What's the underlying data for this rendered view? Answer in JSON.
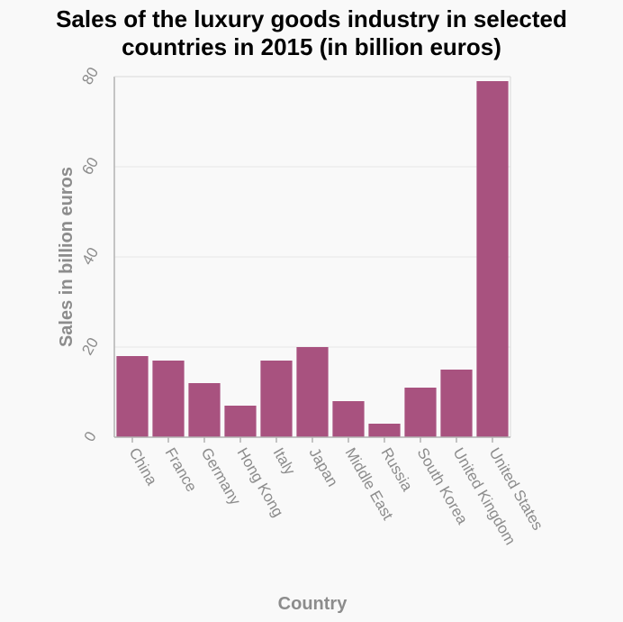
{
  "chart_data": {
    "type": "bar",
    "title_lines": [
      "Sales of the luxury goods industry in selected",
      "countries in 2015 (in billion euros)"
    ],
    "xlabel": "Country",
    "ylabel": "Sales in billion euros",
    "categories": [
      "China",
      "France",
      "Germany",
      "Hong Kong",
      "Italy",
      "Japan",
      "Middle East",
      "Russia",
      "South Korea",
      "United Kingdom",
      "United States"
    ],
    "values": [
      18,
      17,
      12,
      7,
      17,
      20,
      8,
      3,
      11,
      15,
      79
    ],
    "ylim": [
      0,
      80
    ],
    "yticks": [
      "0",
      "20",
      "40",
      "60",
      "80"
    ],
    "grid": true,
    "colors": {
      "bar": "#a8527f",
      "axis": "#b3b3b3",
      "grid": "#e8e8e8",
      "text": "#8c8c8c"
    }
  }
}
